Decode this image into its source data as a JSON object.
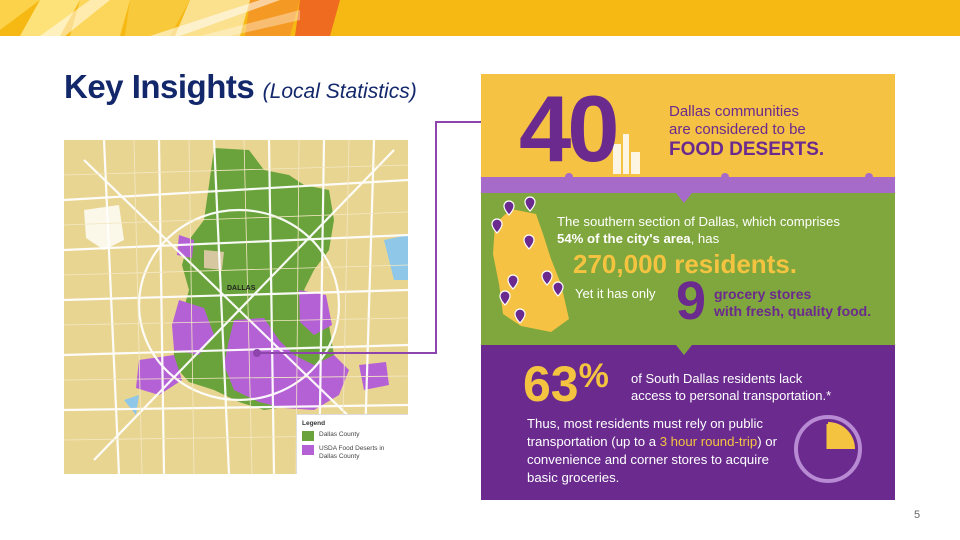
{
  "slide": {
    "title": "Key Insights",
    "subtitle": "(Local Statistics)",
    "page_number": "5"
  },
  "map": {
    "center_label": "DALLAS",
    "legend": {
      "title": "Legend",
      "items": [
        {
          "label": "Dallas County",
          "color": "#6aa33c"
        },
        {
          "label": "USDA Food Deserts in Dallas County",
          "color": "#b561d6"
        }
      ]
    }
  },
  "infographic": {
    "big_number": "40",
    "deserts_line1": "Dallas communities",
    "deserts_line2": "are considered to be",
    "deserts_emphasis": "FOOD DESERTS.",
    "south_part1": "The southern section of Dallas, which comprises ",
    "south_bold": "54% of the city's area",
    "south_part2": ", has",
    "residents": "270,000 residents.",
    "yet": "Yet it has only",
    "grocery_number": "9",
    "grocery_line1": "grocery stores",
    "grocery_line2": "with fresh, quality food.",
    "transport_pct": "63",
    "transport_pct_symbol": "%",
    "lack_line1": "of South Dallas residents lack",
    "lack_line2": "access to personal transportation.*",
    "thus_part1": "Thus, most residents must rely on public transportation (up to a ",
    "thus_highlight": "3 hour round-trip",
    "thus_part2": ") or convenience and corner stores to acquire basic groceries.",
    "clock_fraction_shaded": 0.25,
    "colors": {
      "yellow": "#f5c243",
      "green": "#80a73d",
      "purple": "#6a2a8e",
      "lavender": "#a66bc9",
      "gold_text": "#f4c441"
    }
  }
}
